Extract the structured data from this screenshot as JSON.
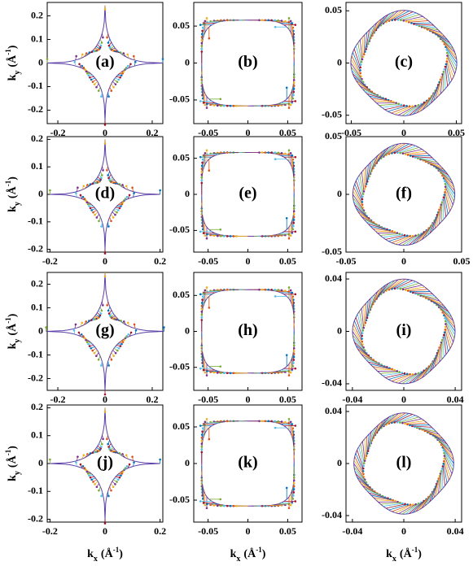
{
  "panels": [
    {
      "label": "(a)",
      "xlim": [
        -0.245,
        0.245
      ],
      "ylim": [
        -0.257,
        0.257
      ],
      "xticks": [
        -0.2,
        0,
        0.2
      ],
      "yticks": [
        -0.2,
        -0.1,
        0,
        0.1,
        0.2
      ]
    },
    {
      "label": "(b)",
      "xlim": [
        -0.068,
        0.068
      ],
      "ylim": [
        -0.082,
        0.082
      ],
      "xticks": [
        -0.05,
        0,
        0.05
      ],
      "yticks": [
        -0.05,
        0,
        0.05
      ]
    },
    {
      "label": "(c)",
      "xlim": [
        -0.055,
        0.055
      ],
      "ylim": [
        -0.058,
        0.058
      ],
      "xticks": [
        -0.05,
        0,
        0.05
      ],
      "yticks": [
        -0.05,
        0,
        0.05
      ]
    },
    {
      "label": "(d)",
      "xlim": [
        -0.21,
        0.21
      ],
      "ylim": [
        -0.21,
        0.21
      ],
      "xticks": [
        -0.2,
        0,
        0.2
      ],
      "yticks": [
        -0.2,
        -0.1,
        0,
        0.1,
        0.2
      ]
    },
    {
      "label": "(e)",
      "xlim": [
        -0.068,
        0.068
      ],
      "ylim": [
        -0.08,
        0.08
      ],
      "xticks": [
        -0.05,
        0,
        0.05
      ],
      "yticks": [
        -0.05,
        0,
        0.05
      ]
    },
    {
      "label": "(f)",
      "xlim": [
        -0.05,
        0.05
      ],
      "ylim": [
        -0.05,
        0.05
      ],
      "xticks": [
        -0.05,
        0,
        0.05
      ],
      "yticks": [
        -0.05,
        0,
        0.05
      ]
    },
    {
      "label": "(g)",
      "xlim": [
        -0.245,
        0.245
      ],
      "ylim": [
        -0.25,
        0.25
      ],
      "xticks": [
        -0.2,
        0,
        0.2
      ],
      "yticks": [
        -0.2,
        -0.1,
        0,
        0.1,
        0.2
      ]
    },
    {
      "label": "(h)",
      "xlim": [
        -0.068,
        0.068
      ],
      "ylim": [
        -0.082,
        0.082
      ],
      "xticks": [
        -0.05,
        0,
        0.05
      ],
      "yticks": [
        -0.05,
        0,
        0.05
      ]
    },
    {
      "label": "(i)",
      "xlim": [
        -0.045,
        0.045
      ],
      "ylim": [
        -0.045,
        0.045
      ],
      "xticks": [
        -0.04,
        0,
        0.04
      ],
      "yticks": [
        -0.04,
        0,
        0.04
      ]
    },
    {
      "label": "(j)",
      "xlim": [
        -0.21,
        0.21
      ],
      "ylim": [
        -0.21,
        0.21
      ],
      "xticks": [
        -0.2,
        0,
        0.2
      ],
      "yticks": [
        -0.2,
        -0.1,
        0,
        0.1,
        0.2
      ]
    },
    {
      "label": "(k)",
      "xlim": [
        -0.068,
        0.068
      ],
      "ylim": [
        -0.08,
        0.08
      ],
      "xticks": [
        -0.05,
        0,
        0.05
      ],
      "yticks": [
        -0.05,
        0,
        0.05
      ]
    },
    {
      "label": "(l)",
      "xlim": [
        -0.045,
        0.045
      ],
      "ylim": [
        -0.045,
        0.045
      ],
      "xticks": [
        -0.04,
        0,
        0.04
      ],
      "yticks": [
        -0.04,
        0,
        0.04
      ]
    }
  ],
  "y_label": {
    "base": "k",
    "sub": "y",
    "unit": "(Å",
    "sup": "-1",
    "close": ")"
  },
  "x_label": {
    "base": "k",
    "sub": "x",
    "unit": "(Å",
    "sup": "-1",
    "close": ")"
  }
}
